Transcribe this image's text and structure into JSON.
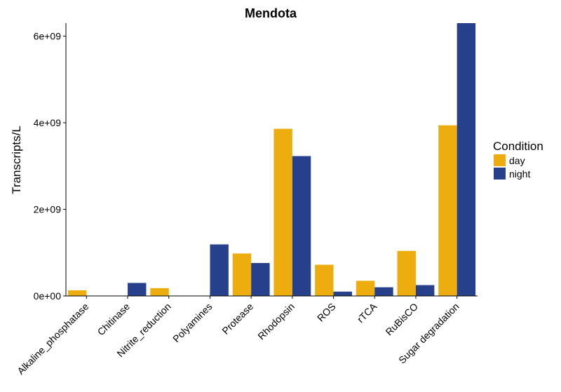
{
  "chart_data": {
    "type": "bar",
    "title": "Mendota",
    "xlabel": "",
    "ylabel": "Transcripts/L",
    "categories": [
      "Alkaline_phosphatase",
      "Chitinase",
      "Nitrite_reduction",
      "Polyamines",
      "Protease",
      "Rhodopsin",
      "ROS",
      "rTCA",
      "RuBisCO",
      "Sugar degradation"
    ],
    "series": [
      {
        "name": "day",
        "color": "#EEAD0E",
        "values": [
          130000000,
          0,
          180000000,
          0,
          980000000,
          3860000000,
          720000000,
          350000000,
          1040000000,
          3940000000
        ]
      },
      {
        "name": "night",
        "color": "#27408B",
        "values": [
          0,
          300000000,
          0,
          1190000000,
          760000000,
          3230000000,
          100000000,
          200000000,
          250000000,
          6300000000
        ]
      }
    ],
    "ylim": [
      0,
      6300000000
    ],
    "yticks": [
      0,
      2000000000,
      4000000000,
      6000000000
    ],
    "ytick_labels": [
      "0e+00",
      "2e+09",
      "4e+09",
      "6e+09"
    ],
    "legend": {
      "title": "Condition",
      "position": "right"
    },
    "grid": false
  }
}
